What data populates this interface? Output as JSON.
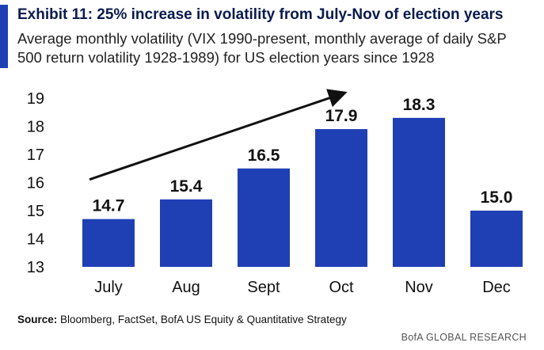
{
  "header": {
    "title": "Exhibit 11: 25% increase in volatility from July-Nov of election years",
    "subtitle": "Average monthly volatility (VIX 1990-present, monthly average of daily S&P 500 return volatility 1928-1989) for US election years since 1928"
  },
  "chart_data": {
    "type": "bar",
    "categories": [
      "July",
      "Aug",
      "Sept",
      "Oct",
      "Nov",
      "Dec"
    ],
    "values": [
      14.7,
      15.4,
      16.5,
      17.9,
      18.3,
      15.0
    ],
    "value_labels": [
      "14.7",
      "15.4",
      "16.5",
      "17.9",
      "18.3",
      "15.0"
    ],
    "ylim": [
      13,
      19
    ],
    "yticks": [
      13,
      14,
      15,
      16,
      17,
      18,
      19
    ],
    "bar_color": "#1f3fb5",
    "annotation": "upward trend arrow from July to Oct",
    "xlabel": "",
    "ylabel": ""
  },
  "footer": {
    "source_label": "Source:",
    "source_text": "Bloomberg, FactSet, BofA US Equity & Quantitative Strategy",
    "brand": "BofA GLOBAL RESEARCH"
  }
}
